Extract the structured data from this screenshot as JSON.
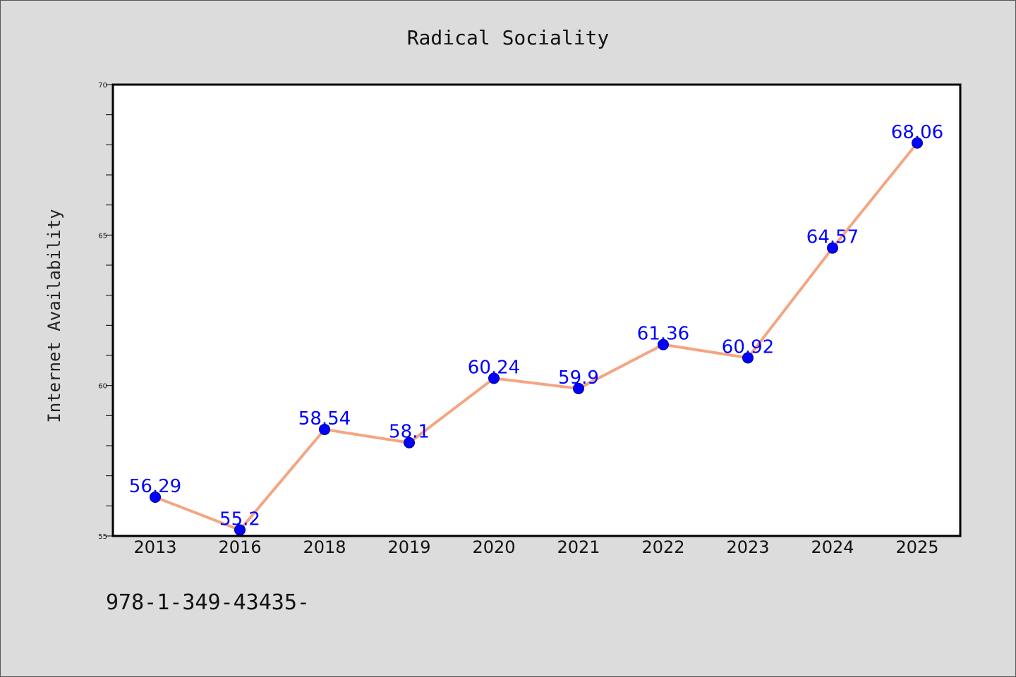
{
  "chart_data": {
    "type": "line",
    "title": "Radical Sociality",
    "xlabel": "",
    "ylabel": "Internet Availability",
    "categories": [
      "2013",
      "2016",
      "2018",
      "2019",
      "2020",
      "2021",
      "2022",
      "2023",
      "2024",
      "2025"
    ],
    "series": [
      {
        "values": [
          56.29,
          55.2,
          58.54,
          58.1,
          60.24,
          59.9,
          61.36,
          60.92,
          64.57,
          68.06
        ],
        "data_labels": [
          "56.29",
          "55.2",
          "58.54",
          "58.1",
          "60.24",
          "59.9",
          "61.36",
          "60.92",
          "64.57",
          "68.06"
        ]
      }
    ],
    "ylim": [
      55,
      70
    ],
    "yticks": [
      "55",
      "60",
      "65",
      "70"
    ],
    "grid": false,
    "legend": "none",
    "colors": {
      "line": "#f4a582",
      "marker": "#0000ff",
      "data_label": "#0000ff",
      "plot_background": "#ffffff",
      "figure_background": "#dcdcdc"
    }
  },
  "footer_text": "978-1-349-43435-"
}
